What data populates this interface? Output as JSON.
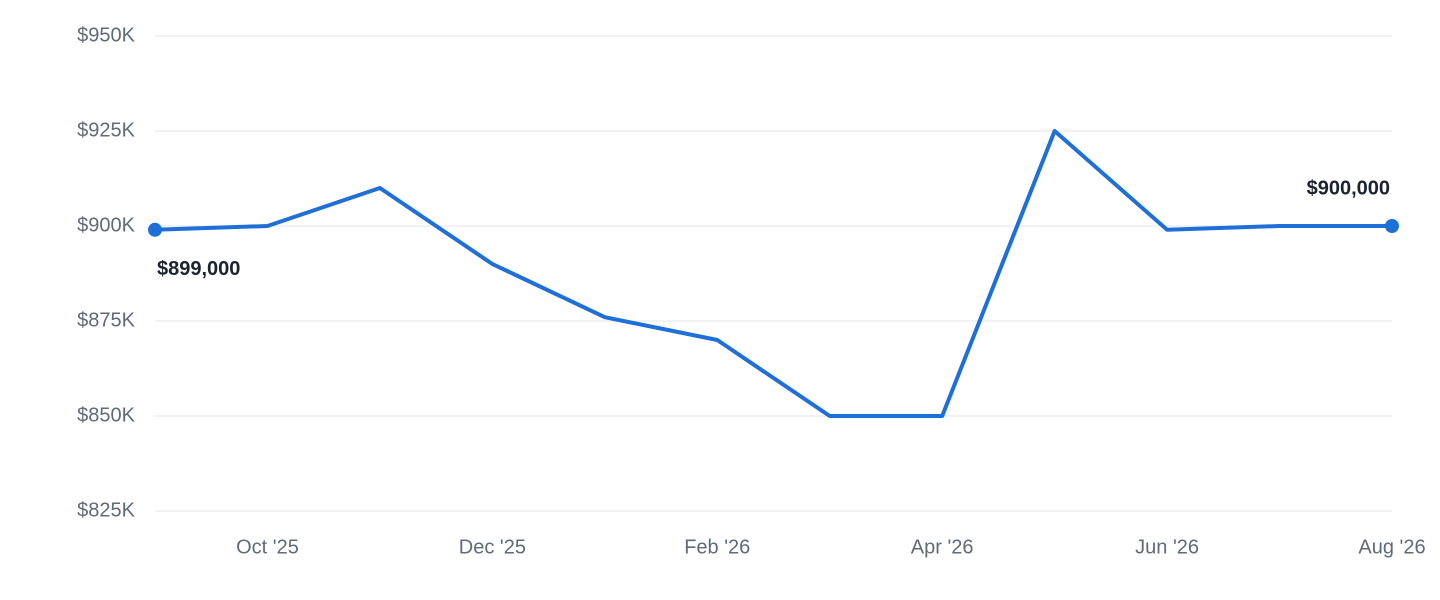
{
  "chart_data": {
    "type": "line",
    "categories": [
      null,
      "Oct '25",
      null,
      "Dec '25",
      null,
      "Feb '26",
      null,
      "Apr '26",
      null,
      "Jun '26",
      null,
      "Aug '26"
    ],
    "series": [
      {
        "color": "#1f6fd8",
        "values": [
          899000,
          900000,
          910000,
          890000,
          876000,
          870000,
          850000,
          850000,
          925000,
          899000,
          900000,
          900000
        ],
        "value_labels": [
          "$899,000",
          null,
          null,
          null,
          null,
          null,
          null,
          null,
          null,
          null,
          null,
          "$900,000"
        ]
      }
    ],
    "ylim": [
      825000,
      950000
    ],
    "yticks": [
      {
        "value": 825000,
        "label": "$825K"
      },
      {
        "value": 850000,
        "label": "$850K"
      },
      {
        "value": 875000,
        "label": "$875K"
      },
      {
        "value": 900000,
        "label": "$900K"
      },
      {
        "value": 925000,
        "label": "$925K"
      },
      {
        "value": 950000,
        "label": "$950K"
      }
    ],
    "grid": true
  }
}
